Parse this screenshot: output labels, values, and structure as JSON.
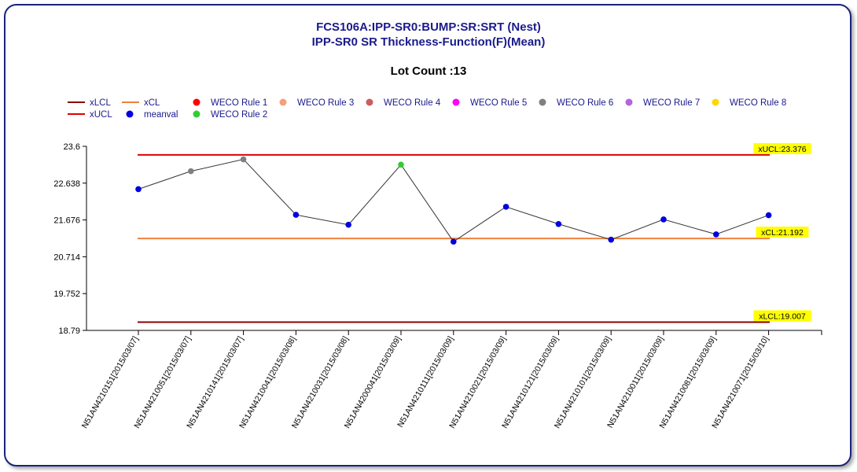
{
  "title_line1": "FCS106A:IPP-SR0:BUMP:SR:SRT (Nest)",
  "title_line2": "IPP-SR0 SR Thickness-Function(F)(Mean)",
  "lot_count_label": "Lot Count :13",
  "legend": [
    {
      "label": "xLCL",
      "kind": "line",
      "color": "#8b0000"
    },
    {
      "label": "xUCL",
      "kind": "line",
      "color": "#e00000"
    },
    {
      "label": "xCL",
      "kind": "line",
      "color": "#f08040"
    },
    {
      "label": "meanval",
      "kind": "dot",
      "color": "#0000e0"
    },
    {
      "label": "WECO Rule 1",
      "kind": "dot",
      "color": "#ff0000"
    },
    {
      "label": "WECO Rule 2",
      "kind": "dot",
      "color": "#33cc33"
    },
    {
      "label": "WECO Rule 3",
      "kind": "dot",
      "color": "#f4a07a"
    },
    {
      "label": "WECO Rule 4",
      "kind": "dot",
      "color": "#cd5c5c"
    },
    {
      "label": "WECO Rule 5",
      "kind": "dot",
      "color": "#ff00ff"
    },
    {
      "label": "WECO Rule 6",
      "kind": "dot",
      "color": "#808080"
    },
    {
      "label": "WECO Rule 7",
      "kind": "dot",
      "color": "#b464dc"
    },
    {
      "label": "WECO Rule 8",
      "kind": "dot",
      "color": "#ffd700"
    }
  ],
  "chart_data": {
    "type": "line",
    "title": "FCS106A:IPP-SR0:BUMP:SR:SRT (Nest)",
    "subtitle": "IPP-SR0 SR Thickness-Function(F)(Mean)",
    "xlabel": "",
    "ylabel": "",
    "ylim": [
      18.79,
      23.6
    ],
    "yticks": [
      "23.6",
      "22.638",
      "21.676",
      "20.714",
      "19.752",
      "18.79"
    ],
    "grid": false,
    "legend_position": "top-left",
    "categories": [
      "N51AN4210151[2015/03/07]",
      "N51AN4210051[2015/03/07]",
      "N51AN4210141[2015/03/07]",
      "N51AN4210041[2015/03/08]",
      "N51AN4210031[2015/03/08]",
      "N51AN4200041[2015/03/09]",
      "N51AN4210111[2015/03/09]",
      "N51AN4210021[2015/03/09]",
      "N51AN4210121[2015/03/09]",
      "N51AN4210101[2015/03/09]",
      "N51AN4210011[2015/03/09]",
      "N51AN4210081[2015/03/09]",
      "N51AN4210071[2015/03/10]"
    ],
    "series": [
      {
        "name": "meanval",
        "values": [
          22.48,
          22.95,
          23.26,
          21.81,
          21.55,
          23.12,
          21.11,
          22.02,
          21.57,
          21.16,
          21.69,
          21.3,
          21.8
        ],
        "point_colors": [
          "#0000e0",
          "#808080",
          "#808080",
          "#0000e0",
          "#0000e0",
          "#33cc33",
          "#0000e0",
          "#0000e0",
          "#0000e0",
          "#0000e0",
          "#0000e0",
          "#0000e0",
          "#0000e0"
        ]
      }
    ],
    "control_lines": [
      {
        "name": "xUCL",
        "value": 23.376,
        "label": "xUCL:23.376",
        "color": "#e00000"
      },
      {
        "name": "xCL",
        "value": 21.192,
        "label": "xCL:21.192",
        "color": "#f08040"
      },
      {
        "name": "xLCL",
        "value": 19.007,
        "label": "xLCL:19.007",
        "color": "#8b0000"
      }
    ]
  }
}
